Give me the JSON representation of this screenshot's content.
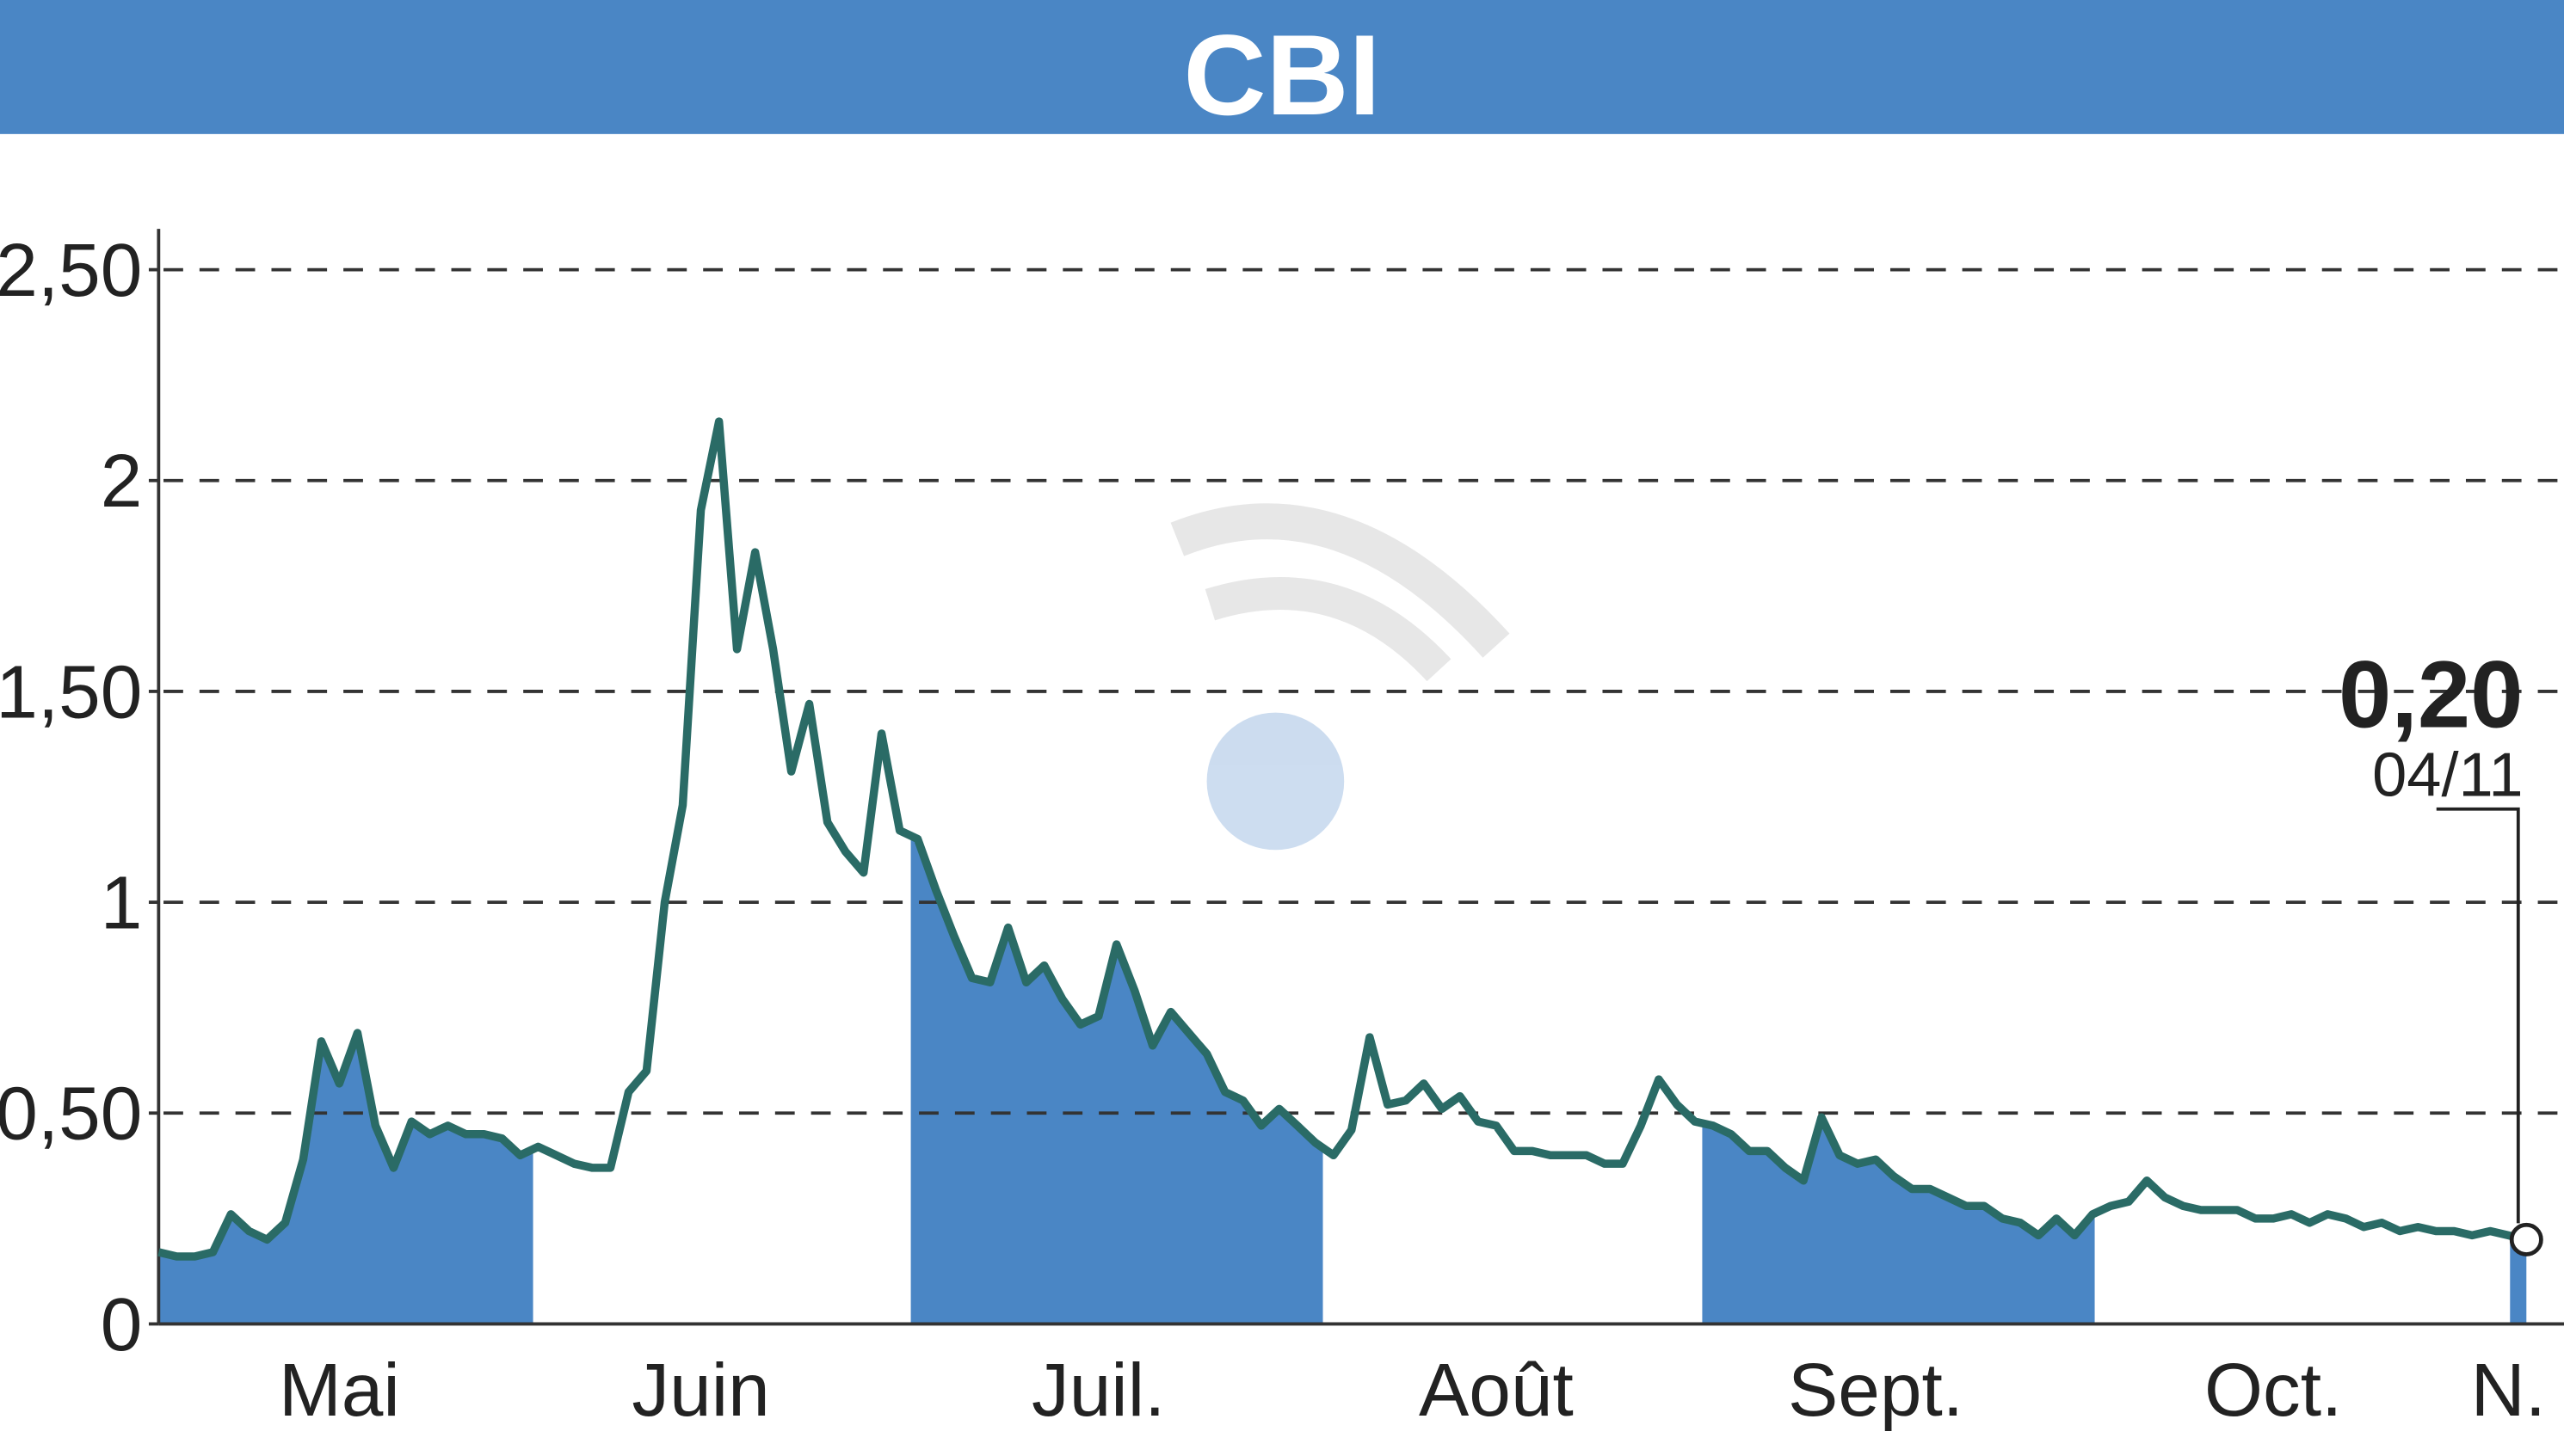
{
  "chart_data": {
    "type": "line",
    "title": "CBI",
    "categories": [
      null,
      null,
      null,
      null,
      null,
      null,
      null,
      null,
      null,
      null,
      "Mai",
      null,
      null,
      null,
      null,
      null,
      null,
      null,
      null,
      null,
      null,
      null,
      null,
      null,
      null,
      null,
      null,
      null,
      null,
      null,
      "Juin",
      null,
      null,
      null,
      null,
      null,
      null,
      null,
      null,
      null,
      null,
      null,
      null,
      null,
      null,
      null,
      null,
      null,
      null,
      null,
      null,
      null,
      "Juil.",
      null,
      null,
      null,
      null,
      null,
      null,
      null,
      null,
      null,
      null,
      null,
      null,
      null,
      null,
      null,
      null,
      null,
      null,
      null,
      null,
      null,
      "Août",
      null,
      null,
      null,
      null,
      null,
      null,
      null,
      null,
      null,
      null,
      null,
      null,
      null,
      null,
      null,
      null,
      null,
      null,
      null,
      null,
      "Sept.",
      null,
      null,
      null,
      null,
      null,
      null,
      null,
      null,
      null,
      null,
      null,
      null,
      null,
      null,
      null,
      null,
      null,
      null,
      null,
      null,
      null,
      "Oct.",
      null,
      null,
      null,
      null,
      null,
      null,
      null,
      null,
      null,
      null,
      null,
      null,
      "N.",
      null
    ],
    "series": [
      {
        "name": "CBI",
        "color": "#2a6b66",
        "values": [
          0.17,
          0.16,
          0.16,
          0.17,
          0.26,
          0.22,
          0.2,
          0.24,
          0.39,
          0.67,
          0.57,
          0.69,
          0.47,
          0.37,
          0.48,
          0.45,
          0.47,
          0.45,
          0.45,
          0.44,
          0.4,
          0.42,
          0.4,
          0.38,
          0.37,
          0.37,
          0.55,
          0.6,
          1.0,
          1.23,
          1.93,
          2.14,
          1.6,
          1.83,
          1.6,
          1.31,
          1.47,
          1.19,
          1.12,
          1.07,
          1.4,
          1.17,
          1.15,
          1.03,
          0.92,
          0.82,
          0.81,
          0.94,
          0.81,
          0.85,
          0.77,
          0.71,
          0.73,
          0.9,
          0.79,
          0.66,
          0.74,
          0.69,
          0.64,
          0.55,
          0.53,
          0.47,
          0.51,
          0.47,
          0.43,
          0.4,
          0.46,
          0.68,
          0.52,
          0.53,
          0.57,
          0.51,
          0.54,
          0.48,
          0.47,
          0.41,
          0.41,
          0.4,
          0.4,
          0.4,
          0.38,
          0.38,
          0.47,
          0.58,
          0.52,
          0.48,
          0.47,
          0.45,
          0.41,
          0.41,
          0.37,
          0.34,
          0.49,
          0.4,
          0.38,
          0.39,
          0.35,
          0.32,
          0.32,
          0.3,
          0.28,
          0.28,
          0.25,
          0.24,
          0.21,
          0.25,
          0.21,
          0.26,
          0.28,
          0.29,
          0.34,
          0.3,
          0.28,
          0.27,
          0.27,
          0.27,
          0.25,
          0.25,
          0.26,
          0.24,
          0.26,
          0.25,
          0.23,
          0.24,
          0.22,
          0.23,
          0.22,
          0.22,
          0.21,
          0.22,
          0.21,
          0.2
        ],
        "value_labels": [
          null,
          null,
          null,
          null,
          null,
          null,
          null,
          null,
          null,
          null,
          null,
          null,
          null,
          null,
          null,
          null,
          null,
          null,
          null,
          null,
          null,
          null,
          null,
          null,
          null,
          null,
          null,
          null,
          null,
          null,
          null,
          null,
          null,
          null,
          null,
          null,
          null,
          null,
          null,
          null,
          null,
          null,
          null,
          null,
          null,
          null,
          null,
          null,
          null,
          null,
          null,
          null,
          null,
          null,
          null,
          null,
          null,
          null,
          null,
          null,
          null,
          null,
          null,
          null,
          null,
          null,
          null,
          null,
          null,
          null,
          null,
          null,
          null,
          null,
          null,
          null,
          null,
          null,
          null,
          null,
          null,
          null,
          null,
          null,
          null,
          null,
          null,
          null,
          null,
          null,
          null,
          null,
          null,
          null,
          null,
          null,
          null,
          null,
          null,
          null,
          null,
          null,
          null,
          null,
          null,
          null,
          null,
          null,
          null,
          null,
          null,
          null,
          null,
          null,
          null,
          null,
          null,
          null,
          null,
          null,
          null,
          null,
          null,
          null,
          null,
          null,
          null,
          null,
          null,
          null,
          null,
          "0,20"
        ]
      }
    ],
    "annotation": "04/11",
    "band_color": "#4a86c5",
    "ylim": [
      0,
      2.5
    ],
    "yticks": [
      0,
      {
        "value": 0.5,
        "label": "0,50"
      },
      1,
      {
        "value": 1.5,
        "label": "1,50"
      },
      2,
      {
        "value": 2.5,
        "label": "2,50"
      }
    ],
    "grid": true
  }
}
